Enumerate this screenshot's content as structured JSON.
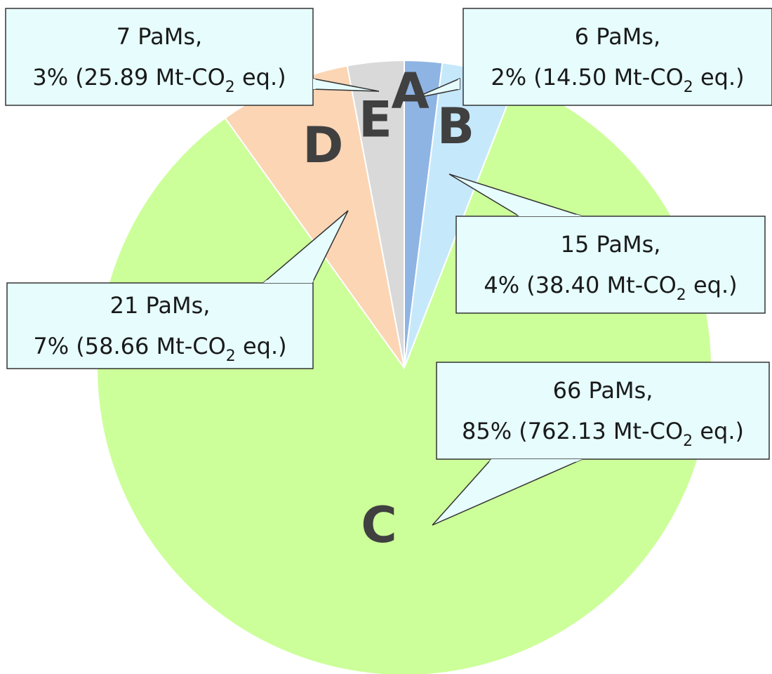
{
  "chart_data": {
    "type": "pie",
    "start_angle_deg": 0,
    "direction": "clockwise",
    "slices": [
      {
        "category": "A",
        "pams": 6,
        "percent": 2,
        "emissions": 14.5,
        "color": "#8eb4e3",
        "line1": "6 PaMs,",
        "prefix": "2% (14.50 Mt-CO",
        "sub": "2",
        "suffix": " eq.)"
      },
      {
        "category": "B",
        "pams": 15,
        "percent": 4,
        "emissions": 38.4,
        "color": "#c6e8fb",
        "line1": "15 PaMs,",
        "prefix": "4% (38.40 Mt-CO",
        "sub": "2",
        "suffix": " eq.)"
      },
      {
        "category": "C",
        "pams": 66,
        "percent": 85,
        "emissions": 762.13,
        "color": "#ccff99",
        "line1": "66 PaMs,",
        "prefix": "85% (762.13 Mt-CO",
        "sub": "2",
        "suffix": " eq.)"
      },
      {
        "category": "D",
        "pams": 21,
        "percent": 7,
        "emissions": 58.66,
        "color": "#fcd5b4",
        "line1": "21 PaMs,",
        "prefix": "7% (58.66 Mt-CO",
        "sub": "2",
        "suffix": " eq.)"
      },
      {
        "category": "E",
        "pams": 7,
        "percent": 3,
        "emissions": 25.89,
        "color": "#d9d9d9",
        "line1": "7 PaMs,",
        "prefix": "3% (25.89 Mt-CO",
        "sub": "2",
        "suffix": " eq.)"
      }
    ]
  }
}
